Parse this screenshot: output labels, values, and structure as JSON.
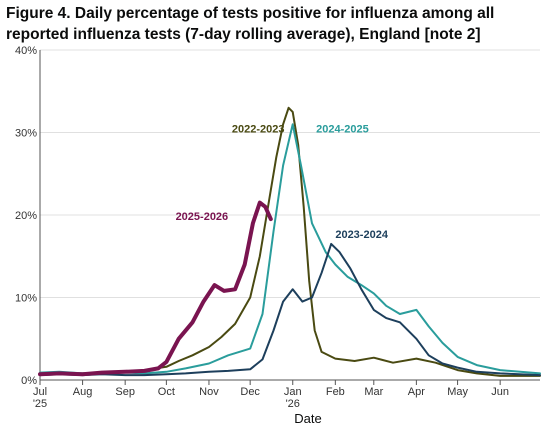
{
  "chart_data": {
    "type": "line",
    "title": "Figure 4. Daily percentage of tests positive for influenza among all reported influenza tests (7-day rolling average), England [note 2]",
    "xlabel": "Date",
    "ylabel": "",
    "ylim": [
      0,
      40
    ],
    "yticks": [
      {
        "value": 0,
        "label": "0%"
      },
      {
        "value": 10,
        "label": "10%"
      },
      {
        "value": 20,
        "label": "20%"
      },
      {
        "value": 30,
        "label": "30%"
      },
      {
        "value": 40,
        "label": "40%"
      }
    ],
    "xlim": [
      "Jul 1",
      "Jun 30"
    ],
    "xticks": [
      {
        "value": "Jul 1",
        "label": "Jul",
        "sublabel": "'25"
      },
      {
        "value": "Aug 1",
        "label": "Aug",
        "sublabel": ""
      },
      {
        "value": "Sep 1",
        "label": "Sep",
        "sublabel": ""
      },
      {
        "value": "Oct 1",
        "label": "Oct",
        "sublabel": ""
      },
      {
        "value": "Nov 1",
        "label": "Nov",
        "sublabel": ""
      },
      {
        "value": "Dec 1",
        "label": "Dec",
        "sublabel": ""
      },
      {
        "value": "Jan 1",
        "label": "Jan",
        "sublabel": "'26"
      },
      {
        "value": "Feb 1",
        "label": "Feb",
        "sublabel": ""
      },
      {
        "value": "Mar 1",
        "label": "Mar",
        "sublabel": ""
      },
      {
        "value": "Apr 1",
        "label": "Apr",
        "sublabel": ""
      },
      {
        "value": "May 1",
        "label": "May",
        "sublabel": ""
      },
      {
        "value": "Jun 1",
        "label": "Jun",
        "sublabel": ""
      }
    ],
    "grid": "horizontal",
    "legend": "direct labels",
    "series": [
      {
        "name": "2022-2023",
        "color": "#4a4a12",
        "label_at": [
          "Dec 26",
          30.0
        ],
        "points": [
          [
            "Jul 1",
            0.7
          ],
          [
            "Jul 15",
            0.8
          ],
          [
            "Aug 1",
            0.8
          ],
          [
            "Aug 15",
            0.9
          ],
          [
            "Sep 1",
            1.0
          ],
          [
            "Sep 15",
            1.2
          ],
          [
            "Oct 1",
            1.6
          ],
          [
            "Oct 10",
            2.3
          ],
          [
            "Oct 20",
            3.0
          ],
          [
            "Nov 1",
            4.0
          ],
          [
            "Nov 10",
            5.2
          ],
          [
            "Nov 20",
            6.8
          ],
          [
            "Dec 1",
            10.0
          ],
          [
            "Dec 8",
            15.0
          ],
          [
            "Dec 15",
            22.0
          ],
          [
            "Dec 20",
            27.0
          ],
          [
            "Dec 25",
            31.0
          ],
          [
            "Dec 29",
            33.0
          ],
          [
            "Jan 1",
            32.5
          ],
          [
            "Jan 5",
            28.5
          ],
          [
            "Jan 9",
            21.0
          ],
          [
            "Jan 13",
            12.0
          ],
          [
            "Jan 17",
            6.0
          ],
          [
            "Jan 22",
            3.4
          ],
          [
            "Feb 1",
            2.6
          ],
          [
            "Feb 15",
            2.3
          ],
          [
            "Mar 1",
            2.7
          ],
          [
            "Mar 15",
            2.1
          ],
          [
            "Apr 1",
            2.6
          ],
          [
            "Apr 15",
            2.1
          ],
          [
            "May 1",
            1.2
          ],
          [
            "May 15",
            0.8
          ],
          [
            "Jun 1",
            0.5
          ],
          [
            "Jun 30",
            0.5
          ]
        ]
      },
      {
        "name": "2024-2025",
        "color": "#2a9d9c",
        "label_at": [
          "Jan 18",
          30.0
        ],
        "points": [
          [
            "Jul 1",
            0.9
          ],
          [
            "Jul 15",
            1.0
          ],
          [
            "Aug 1",
            0.8
          ],
          [
            "Aug 15",
            0.9
          ],
          [
            "Sep 1",
            0.9
          ],
          [
            "Sep 15",
            0.8
          ],
          [
            "Oct 1",
            1.0
          ],
          [
            "Oct 15",
            1.4
          ],
          [
            "Nov 1",
            2.0
          ],
          [
            "Nov 15",
            3.0
          ],
          [
            "Dec 1",
            3.8
          ],
          [
            "Dec 10",
            8.0
          ],
          [
            "Dec 18",
            18.0
          ],
          [
            "Dec 25",
            26.0
          ],
          [
            "Jan 1",
            31.0
          ],
          [
            "Jan 7",
            26.0
          ],
          [
            "Jan 15",
            19.0
          ],
          [
            "Jan 25",
            15.5
          ],
          [
            "Feb 1",
            14.0
          ],
          [
            "Feb 10",
            12.5
          ],
          [
            "Feb 20",
            11.5
          ],
          [
            "Mar 1",
            10.5
          ],
          [
            "Mar 10",
            9.0
          ],
          [
            "Mar 20",
            8.0
          ],
          [
            "Apr 1",
            8.5
          ],
          [
            "Apr 10",
            6.5
          ],
          [
            "Apr 20",
            4.5
          ],
          [
            "May 1",
            2.8
          ],
          [
            "May 15",
            1.8
          ],
          [
            "Jun 1",
            1.2
          ],
          [
            "Jun 30",
            0.8
          ]
        ]
      },
      {
        "name": "2023-2024",
        "color": "#1d3f5c",
        "label_at": [
          "Feb 1",
          17.2
        ],
        "points": [
          [
            "Jul 1",
            0.6
          ],
          [
            "Jul 15",
            0.7
          ],
          [
            "Aug 1",
            0.6
          ],
          [
            "Aug 15",
            0.7
          ],
          [
            "Sep 1",
            0.6
          ],
          [
            "Sep 15",
            0.6
          ],
          [
            "Oct 1",
            0.7
          ],
          [
            "Oct 15",
            0.8
          ],
          [
            "Nov 1",
            1.0
          ],
          [
            "Nov 15",
            1.1
          ],
          [
            "Dec 1",
            1.3
          ],
          [
            "Dec 10",
            2.5
          ],
          [
            "Dec 18",
            6.0
          ],
          [
            "Dec 25",
            9.5
          ],
          [
            "Jan 1",
            11.0
          ],
          [
            "Jan 8",
            9.5
          ],
          [
            "Jan 15",
            10.0
          ],
          [
            "Jan 22",
            13.0
          ],
          [
            "Jan 29",
            16.5
          ],
          [
            "Feb 4",
            15.5
          ],
          [
            "Feb 12",
            13.5
          ],
          [
            "Feb 20",
            11.0
          ],
          [
            "Mar 1",
            8.5
          ],
          [
            "Mar 10",
            7.5
          ],
          [
            "Mar 20",
            7.0
          ],
          [
            "Apr 1",
            5.0
          ],
          [
            "Apr 10",
            3.0
          ],
          [
            "Apr 20",
            2.0
          ],
          [
            "May 1",
            1.5
          ],
          [
            "May 15",
            1.0
          ],
          [
            "Jun 1",
            0.8
          ],
          [
            "Jun 30",
            0.6
          ]
        ]
      },
      {
        "name": "2025-2026",
        "color": "#7a1450",
        "label_at": [
          "Nov 15",
          19.4
        ],
        "points": [
          [
            "Jul 1",
            0.7
          ],
          [
            "Jul 15",
            0.8
          ],
          [
            "Aug 1",
            0.7
          ],
          [
            "Aug 15",
            0.9
          ],
          [
            "Sep 1",
            1.0
          ],
          [
            "Sep 15",
            1.1
          ],
          [
            "Sep 25",
            1.4
          ],
          [
            "Oct 1",
            2.2
          ],
          [
            "Oct 10",
            5.0
          ],
          [
            "Oct 20",
            7.0
          ],
          [
            "Oct 28",
            9.5
          ],
          [
            "Nov 5",
            11.5
          ],
          [
            "Nov 12",
            10.8
          ],
          [
            "Nov 20",
            11.0
          ],
          [
            "Nov 27",
            14.0
          ],
          [
            "Dec 3",
            19.0
          ],
          [
            "Dec 8",
            21.5
          ],
          [
            "Dec 12",
            21.0
          ],
          [
            "Dec 16",
            19.5
          ]
        ]
      }
    ]
  }
}
